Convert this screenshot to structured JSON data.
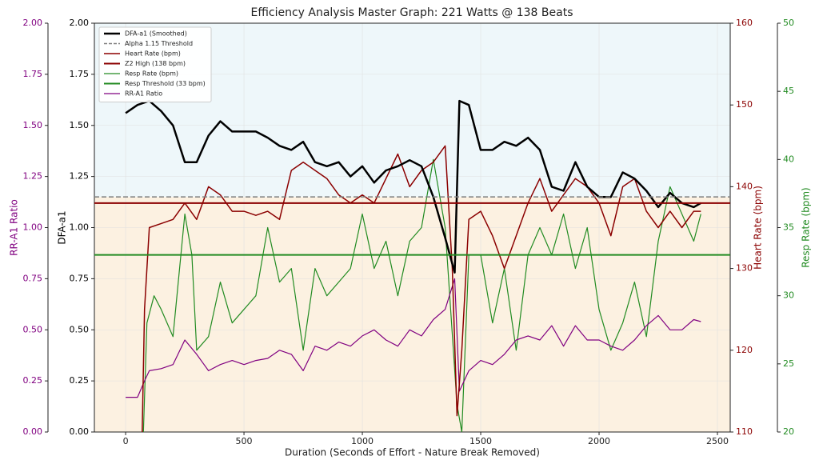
{
  "chart_data": {
    "type": "line",
    "title": "Efficiency Analysis Master Graph: 221 Watts @ 138 Beats",
    "xlabel": "Duration (Seconds of Effort - Nature Break Removed)",
    "ylabel": "DFA-a1",
    "y2label": "Heart Rate (bpm)",
    "y3label": "Resp Rate (bpm)",
    "y4label": "RR-A1 Ratio",
    "xlim": [
      -132,
      2554
    ],
    "xticks": [
      0,
      500,
      1000,
      1500,
      2000,
      2500
    ],
    "ylim": [
      0,
      2
    ],
    "yticks": [
      {
        "value": 0,
        "label": "0.00"
      },
      {
        "value": 0.25,
        "label": "0.25"
      },
      {
        "value": 0.5,
        "label": "0.50"
      },
      {
        "value": 0.75,
        "label": "0.75"
      },
      {
        "value": 1,
        "label": "1.00"
      },
      {
        "value": 1.25,
        "label": "1.25"
      },
      {
        "value": 1.5,
        "label": "1.50"
      },
      {
        "value": 1.75,
        "label": "1.75"
      },
      {
        "value": 2,
        "label": "2.00"
      }
    ],
    "y2lim": [
      110,
      160
    ],
    "y2ticks": [
      110,
      120,
      130,
      140,
      150,
      160
    ],
    "y3lim": [
      20,
      50
    ],
    "y3ticks": [
      20,
      25,
      30,
      35,
      40,
      45,
      50
    ],
    "y4lim": [
      0,
      2
    ],
    "y4ticks": [
      {
        "value": 0,
        "label": "0.00"
      },
      {
        "value": 0.25,
        "label": "0.25"
      },
      {
        "value": 0.5,
        "label": "0.50"
      },
      {
        "value": 0.75,
        "label": "0.75"
      },
      {
        "value": 1,
        "label": "1.00"
      },
      {
        "value": 1.25,
        "label": "1.25"
      },
      {
        "value": 1.5,
        "label": "1.50"
      },
      {
        "value": 1.75,
        "label": "1.75"
      },
      {
        "value": 2,
        "label": "2.00"
      }
    ],
    "grid": true,
    "legend": "upper left",
    "shade_above": "#eef7fa",
    "shade_below": "#fcf1e1",
    "series": [
      {
        "name": "DFA-a1 (Smoothed)",
        "color": "#000000",
        "axis": "y",
        "linewidth": 2.5,
        "x": [
          0,
          50,
          100,
          150,
          200,
          250,
          300,
          350,
          400,
          450,
          500,
          550,
          600,
          650,
          700,
          750,
          800,
          850,
          900,
          950,
          1000,
          1050,
          1100,
          1150,
          1200,
          1250,
          1300,
          1350,
          1390,
          1410,
          1450,
          1500,
          1550,
          1600,
          1650,
          1700,
          1750,
          1800,
          1850,
          1900,
          1950,
          2000,
          2050,
          2100,
          2150,
          2200,
          2250,
          2300,
          2350,
          2400,
          2430
        ],
        "values": [
          1.56,
          1.6,
          1.62,
          1.57,
          1.5,
          1.32,
          1.32,
          1.45,
          1.52,
          1.47,
          1.47,
          1.47,
          1.44,
          1.4,
          1.38,
          1.42,
          1.32,
          1.3,
          1.32,
          1.25,
          1.3,
          1.22,
          1.28,
          1.3,
          1.33,
          1.3,
          1.15,
          0.95,
          0.78,
          1.62,
          1.6,
          1.38,
          1.38,
          1.42,
          1.4,
          1.44,
          1.38,
          1.2,
          1.18,
          1.32,
          1.2,
          1.15,
          1.15,
          1.27,
          1.24,
          1.18,
          1.1,
          1.17,
          1.12,
          1.1,
          1.12
        ]
      },
      {
        "name": "Alpha 1.15 Threshold",
        "color": "#7f7f7f",
        "axis": "y",
        "linewidth": 1.5,
        "dash": true,
        "value": 1.15
      },
      {
        "name": "Heart Rate (bpm)",
        "color": "#8b0000",
        "axis": "y2",
        "linewidth": 1.5,
        "x": [
          70,
          80,
          100,
          150,
          200,
          250,
          300,
          350,
          400,
          450,
          500,
          550,
          600,
          650,
          700,
          750,
          800,
          850,
          900,
          950,
          1000,
          1050,
          1100,
          1150,
          1200,
          1250,
          1300,
          1350,
          1380,
          1400,
          1420,
          1450,
          1500,
          1550,
          1600,
          1650,
          1700,
          1750,
          1800,
          1850,
          1900,
          1950,
          2000,
          2050,
          2100,
          2150,
          2200,
          2250,
          2300,
          2350,
          2400,
          2430
        ],
        "values": [
          110,
          125,
          135,
          135.5,
          136,
          138,
          136,
          140,
          139,
          137,
          137,
          136.5,
          137,
          136,
          142,
          143,
          142,
          141,
          139,
          138,
          139,
          138,
          141,
          144,
          140,
          142,
          143,
          145,
          130,
          112,
          120,
          136,
          137,
          134,
          130,
          134,
          138,
          141,
          137,
          139,
          141,
          140,
          138,
          134,
          140,
          141,
          137,
          135,
          137,
          135,
          137,
          137
        ]
      },
      {
        "name": "Z2 High (138 bpm)",
        "color": "#8b0000",
        "axis": "y2",
        "linewidth": 2,
        "value": 138
      },
      {
        "name": "Resp Rate (bpm)",
        "color": "#228b22",
        "axis": "y3",
        "linewidth": 1.2,
        "x": [
          75,
          90,
          120,
          150,
          200,
          250,
          280,
          300,
          350,
          400,
          450,
          500,
          550,
          600,
          650,
          700,
          750,
          800,
          850,
          900,
          950,
          1000,
          1050,
          1100,
          1150,
          1200,
          1250,
          1300,
          1350,
          1400,
          1420,
          1450,
          1500,
          1550,
          1600,
          1650,
          1700,
          1750,
          1800,
          1850,
          1900,
          1950,
          2000,
          2050,
          2100,
          2150,
          2200,
          2250,
          2300,
          2350,
          2400,
          2430
        ],
        "values": [
          20,
          28,
          30,
          29,
          27,
          36,
          33,
          26,
          27,
          31,
          28,
          29,
          30,
          35,
          31,
          32,
          26,
          32,
          30,
          31,
          32,
          36,
          32,
          34,
          30,
          34,
          35,
          40,
          35,
          22,
          20,
          33,
          33,
          28,
          32,
          26,
          33,
          35,
          33,
          36,
          32,
          35,
          29,
          26,
          28,
          31,
          27,
          34,
          38,
          36,
          34,
          36
        ]
      },
      {
        "name": "Resp Threshold (33 bpm)",
        "color": "#228b22",
        "axis": "y3",
        "linewidth": 2,
        "value": 33
      },
      {
        "name": "RR-A1 Ratio",
        "color": "#800080",
        "axis": "y4",
        "linewidth": 1.2,
        "x": [
          0,
          50,
          80,
          100,
          150,
          200,
          250,
          300,
          350,
          400,
          450,
          500,
          550,
          600,
          650,
          700,
          750,
          800,
          850,
          900,
          950,
          1000,
          1050,
          1100,
          1150,
          1200,
          1250,
          1300,
          1350,
          1390,
          1410,
          1450,
          1500,
          1550,
          1600,
          1650,
          1700,
          1750,
          1800,
          1850,
          1900,
          1950,
          2000,
          2050,
          2100,
          2150,
          2200,
          2250,
          2300,
          2350,
          2400,
          2430
        ],
        "values": [
          0.17,
          0.17,
          0.25,
          0.3,
          0.31,
          0.33,
          0.45,
          0.38,
          0.3,
          0.33,
          0.35,
          0.33,
          0.35,
          0.36,
          0.4,
          0.38,
          0.3,
          0.42,
          0.4,
          0.44,
          0.42,
          0.47,
          0.5,
          0.45,
          0.42,
          0.5,
          0.47,
          0.55,
          0.6,
          0.75,
          0.2,
          0.3,
          0.35,
          0.33,
          0.38,
          0.45,
          0.47,
          0.45,
          0.52,
          0.42,
          0.52,
          0.45,
          0.45,
          0.42,
          0.4,
          0.45,
          0.52,
          0.57,
          0.5,
          0.5,
          0.55,
          0.54
        ]
      }
    ]
  }
}
